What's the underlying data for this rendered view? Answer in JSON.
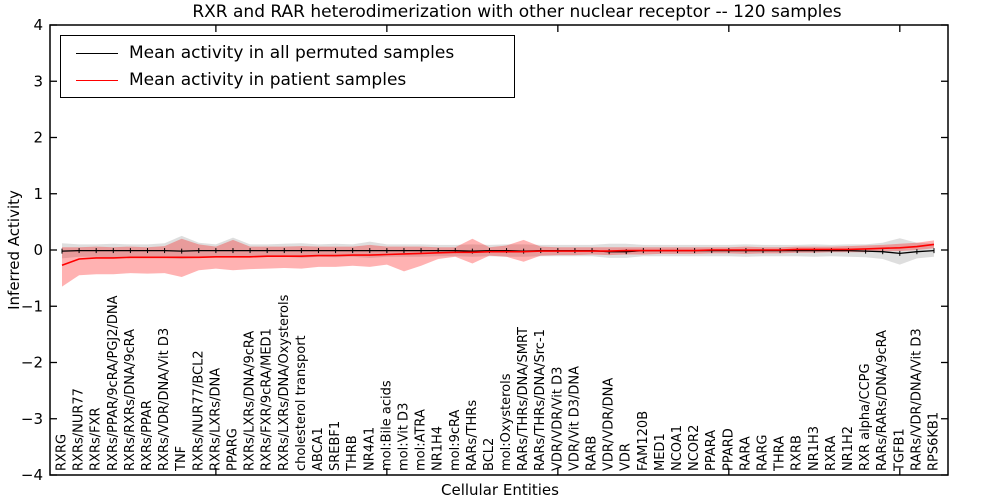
{
  "chart_data": {
    "type": "line",
    "title": "RXR and RAR heterodimerization with other nuclear receptor -- 120 samples",
    "xlabel": "Cellular Entities",
    "ylabel": "Inferred Activity",
    "ylim": [
      -4,
      4
    ],
    "yticks": [
      -4,
      -3,
      -2,
      -1,
      0,
      1,
      2,
      3,
      4
    ],
    "xticks_major": [
      10,
      20,
      30,
      40,
      50
    ],
    "grid": false,
    "legend_position": "upper left",
    "categories": [
      "RXRG",
      "RXRs/NUR77",
      "RXRs/FXR",
      "RXRs/PPAR/9cRA/PGJ2/DNA",
      "RXRs/RXRs/DNA/9cRA",
      "RXRs/PPAR",
      "RXRs/VDR/DNA/Vit D3",
      "TNF",
      "RXRs/NUR77/BCL2",
      "RXRs/LXRs/DNA",
      "PPARG",
      "RXRs/LXRs/DNA/9cRA",
      "RXRs/FXR/9cRA/MED1",
      "RXRs/LXRs/DNA/Oxysterols",
      "cholesterol transport",
      "ABCA1",
      "SREBF1",
      "THRB",
      "NR4A1",
      "mol:Bile acids",
      "mol:Vit D3",
      "mol:ATRA",
      "NR1H4",
      "mol:9cRA",
      "RARs/THRs",
      "BCL2",
      "mol:Oxysterols",
      "RARs/THRs/DNA/SMRT",
      "RARs/THRs/DNA/Src-1",
      "VDR/VDR/Vit D3",
      "VDR/Vit D3/DNA",
      "RARB",
      "VDR/VDR/DNA",
      "VDR",
      "FAM120B",
      "MED1",
      "NCOA1",
      "NCOR2",
      "PPARA",
      "PPARD",
      "RARA",
      "RARG",
      "THRA",
      "RXRB",
      "NR1H3",
      "RXRA",
      "NR1H2",
      "RXR alpha/CCPG",
      "RARs/RARs/DNA/9cRA",
      "TGFB1",
      "RARs/VDR/DNA/Vit D3",
      "RPS6KB1"
    ],
    "series": [
      {
        "name": "Mean activity in all permuted samples",
        "color": "#000000",
        "band_color": "#999999",
        "band_opacity": 0.32,
        "marker": "|",
        "values": [
          -0.02,
          -0.01,
          -0.01,
          -0.01,
          -0.01,
          -0.01,
          -0.01,
          -0.02,
          -0.01,
          -0.01,
          -0.01,
          -0.01,
          -0.01,
          -0.01,
          -0.01,
          -0.01,
          -0.01,
          -0.01,
          -0.01,
          -0.01,
          -0.01,
          -0.01,
          -0.01,
          -0.01,
          -0.02,
          -0.01,
          -0.01,
          -0.02,
          -0.01,
          -0.01,
          -0.01,
          -0.01,
          -0.03,
          -0.03,
          -0.01,
          -0.01,
          -0.01,
          -0.01,
          -0.01,
          -0.01,
          -0.01,
          -0.01,
          -0.01,
          -0.01,
          -0.01,
          -0.01,
          -0.01,
          -0.02,
          -0.03,
          -0.06,
          -0.03,
          -0.01
        ],
        "band_low": [
          -0.15,
          -0.12,
          -0.12,
          -0.13,
          -0.12,
          -0.13,
          -0.14,
          -0.16,
          -0.14,
          -0.12,
          -0.13,
          -0.12,
          -0.12,
          -0.12,
          -0.14,
          -0.12,
          -0.13,
          -0.12,
          -0.14,
          -0.12,
          -0.12,
          -0.12,
          -0.11,
          -0.11,
          -0.12,
          -0.11,
          -0.12,
          -0.12,
          -0.11,
          -0.11,
          -0.11,
          -0.11,
          -0.14,
          -0.14,
          -0.11,
          -0.11,
          -0.11,
          -0.11,
          -0.11,
          -0.11,
          -0.12,
          -0.11,
          -0.11,
          -0.11,
          -0.12,
          -0.11,
          -0.12,
          -0.13,
          -0.16,
          -0.26,
          -0.15,
          -0.12
        ],
        "band_high": [
          0.12,
          0.1,
          0.1,
          0.11,
          0.1,
          0.1,
          0.12,
          0.25,
          0.13,
          0.1,
          0.22,
          0.1,
          0.1,
          0.11,
          0.12,
          0.1,
          0.11,
          0.1,
          0.15,
          0.1,
          0.1,
          0.1,
          0.09,
          0.09,
          0.1,
          0.09,
          0.1,
          0.1,
          0.09,
          0.09,
          0.09,
          0.09,
          0.11,
          0.11,
          0.09,
          0.09,
          0.09,
          0.09,
          0.09,
          0.09,
          0.1,
          0.09,
          0.09,
          0.09,
          0.1,
          0.09,
          0.1,
          0.1,
          0.13,
          0.21,
          0.13,
          0.11
        ]
      },
      {
        "name": "Mean activity in patient samples",
        "color": "#ff0000",
        "band_color": "#ff0000",
        "band_opacity": 0.3,
        "marker": "none",
        "values": [
          -0.27,
          -0.16,
          -0.14,
          -0.14,
          -0.13,
          -0.13,
          -0.13,
          -0.13,
          -0.13,
          -0.12,
          -0.12,
          -0.12,
          -0.11,
          -0.11,
          -0.11,
          -0.1,
          -0.1,
          -0.09,
          -0.09,
          -0.08,
          -0.07,
          -0.06,
          -0.05,
          -0.04,
          -0.04,
          -0.03,
          -0.03,
          -0.03,
          -0.02,
          -0.02,
          -0.02,
          -0.02,
          -0.02,
          -0.01,
          -0.01,
          -0.01,
          -0.01,
          -0.01,
          0.0,
          0.0,
          0.0,
          0.0,
          0.0,
          0.01,
          0.01,
          0.01,
          0.01,
          0.02,
          0.03,
          0.04,
          0.06,
          0.1
        ],
        "band_low": [
          -0.65,
          -0.45,
          -0.43,
          -0.43,
          -0.41,
          -0.42,
          -0.41,
          -0.48,
          -0.36,
          -0.33,
          -0.36,
          -0.34,
          -0.33,
          -0.32,
          -0.33,
          -0.3,
          -0.3,
          -0.28,
          -0.3,
          -0.26,
          -0.38,
          -0.28,
          -0.16,
          -0.12,
          -0.24,
          -0.1,
          -0.12,
          -0.21,
          -0.1,
          -0.09,
          -0.09,
          -0.08,
          -0.09,
          -0.08,
          -0.08,
          -0.07,
          -0.07,
          -0.07,
          -0.06,
          -0.06,
          -0.07,
          -0.06,
          -0.06,
          -0.05,
          -0.05,
          -0.04,
          -0.04,
          -0.04,
          -0.02,
          -0.02,
          0.0,
          0.03
        ],
        "band_high": [
          0.05,
          0.05,
          0.06,
          0.05,
          0.06,
          0.05,
          0.07,
          0.2,
          0.1,
          0.06,
          0.18,
          0.06,
          0.06,
          0.06,
          0.07,
          0.06,
          0.06,
          0.06,
          0.09,
          0.06,
          0.06,
          0.06,
          0.05,
          0.05,
          0.2,
          0.05,
          0.08,
          0.18,
          0.06,
          0.05,
          0.05,
          0.05,
          0.05,
          0.05,
          0.05,
          0.05,
          0.05,
          0.05,
          0.05,
          0.05,
          0.06,
          0.05,
          0.05,
          0.06,
          0.06,
          0.06,
          0.07,
          0.08,
          0.09,
          0.11,
          0.13,
          0.17
        ]
      }
    ]
  }
}
